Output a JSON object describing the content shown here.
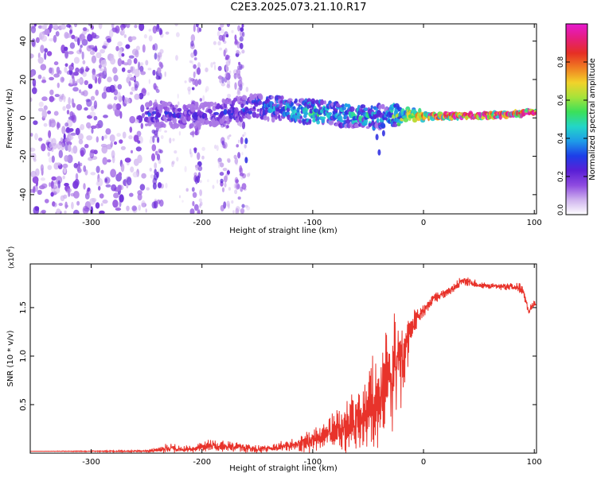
{
  "figure": {
    "title": "C2E3.2025.073.21.10.R17"
  },
  "colors": {
    "snr_line": "#e8332b",
    "colormap": [
      "#ffffff",
      "#cfb3ee",
      "#8f4be0",
      "#5a1fd6",
      "#1d3ee8",
      "#1e9be8",
      "#23d6c8",
      "#3be05a",
      "#a6e33a",
      "#f2d22a",
      "#f07d22",
      "#e62f24",
      "#e61e7c",
      "#e619d0"
    ]
  },
  "chart_data": [
    {
      "type": "heatmap",
      "name": "spectrogram",
      "title": "C2E3.2025.073.21.10.R17",
      "xlabel": "Height of straight line (km)",
      "ylabel": "Frequency (Hz)",
      "xlim": [
        -355,
        102
      ],
      "ylim": [
        -50,
        49
      ],
      "xticks": [
        -300,
        -200,
        -100,
        0,
        100
      ],
      "xtick_labels": [
        "-300",
        "-200",
        "-100",
        "0",
        "100"
      ],
      "yticks": [
        -40,
        -20,
        0,
        20,
        40
      ],
      "ytick_labels": [
        "-40",
        "-20",
        "0",
        "20",
        "40"
      ],
      "colorbar": {
        "label": "Normalized spectral amplitude",
        "range": [
          0,
          1
        ],
        "ticks": [
          0.0,
          0.2,
          0.4,
          0.6,
          0.8
        ],
        "tick_labels": [
          "0.0",
          "0.2",
          "0.4",
          "0.6",
          "0.8"
        ]
      },
      "regions": [
        {
          "name": "broadband-noise",
          "x": [
            -355,
            -252
          ],
          "freq": [
            -50,
            49
          ],
          "amplitude": 0.15
        },
        {
          "name": "sparse-noise",
          "x": [
            -252,
            -155
          ],
          "freq": [
            -50,
            49
          ],
          "amplitude": 0.06
        },
        {
          "name": "noise-stripes",
          "x_centers": [
            -240,
            -205,
            -180,
            -166
          ],
          "freq": [
            -50,
            49
          ],
          "amplitude": 0.12
        }
      ],
      "signal_ridge": {
        "x": [
          -250,
          -200,
          -150,
          -120,
          -100,
          -80,
          -50,
          -35,
          -25,
          -15,
          0,
          20,
          50,
          80,
          95,
          102
        ],
        "freq": [
          2,
          1,
          6,
          4,
          3,
          2,
          1,
          0,
          1,
          2,
          1,
          1,
          1,
          2,
          3,
          3
        ],
        "amplitude": [
          0.28,
          0.25,
          0.35,
          0.45,
          0.5,
          0.45,
          0.5,
          0.4,
          0.55,
          0.7,
          0.85,
          0.9,
          0.9,
          0.9,
          0.95,
          0.95
        ]
      }
    },
    {
      "type": "line",
      "name": "snr",
      "xlabel": "Height of straight line (km)",
      "ylabel": "SNR (10 * v/v)",
      "y_multiplier_label": "(x10",
      "y_multiplier_exp": "4",
      "y_multiplier_close": ")",
      "xlim": [
        -355,
        102
      ],
      "ylim": [
        0,
        1.95
      ],
      "xticks": [
        -300,
        -200,
        -100,
        0,
        100
      ],
      "xtick_labels": [
        "-300",
        "-200",
        "-100",
        "0",
        "100"
      ],
      "yticks": [
        0.5,
        1.0,
        1.5
      ],
      "ytick_labels": [
        "0.5",
        "1.0",
        "1.5"
      ],
      "series": [
        {
          "name": "SNR",
          "x": [
            -355,
            -250,
            -230,
            -210,
            -195,
            -170,
            -150,
            -130,
            -110,
            -100,
            -90,
            -80,
            -70,
            -60,
            -50,
            -40,
            -30,
            -25,
            -20,
            -15,
            -10,
            -5,
            0,
            10,
            20,
            30,
            35,
            50,
            70,
            80,
            90,
            95,
            100,
            102
          ],
          "y": [
            0.02,
            0.02,
            0.05,
            0.04,
            0.08,
            0.06,
            0.04,
            0.06,
            0.1,
            0.12,
            0.18,
            0.22,
            0.28,
            0.35,
            0.45,
            0.55,
            0.75,
            0.9,
            1.0,
            1.15,
            1.3,
            1.4,
            1.48,
            1.6,
            1.65,
            1.72,
            1.78,
            1.73,
            1.72,
            1.72,
            1.68,
            1.45,
            1.55,
            1.52
          ],
          "noise": [
            0.0,
            0.01,
            0.05,
            0.03,
            0.06,
            0.05,
            0.04,
            0.05,
            0.09,
            0.12,
            0.16,
            0.22,
            0.28,
            0.35,
            0.42,
            0.48,
            0.55,
            0.5,
            0.45,
            0.3,
            0.15,
            0.1,
            0.08,
            0.05,
            0.05,
            0.05,
            0.05,
            0.04,
            0.04,
            0.04,
            0.06,
            0.05,
            0.03,
            0.03
          ]
        }
      ]
    }
  ]
}
